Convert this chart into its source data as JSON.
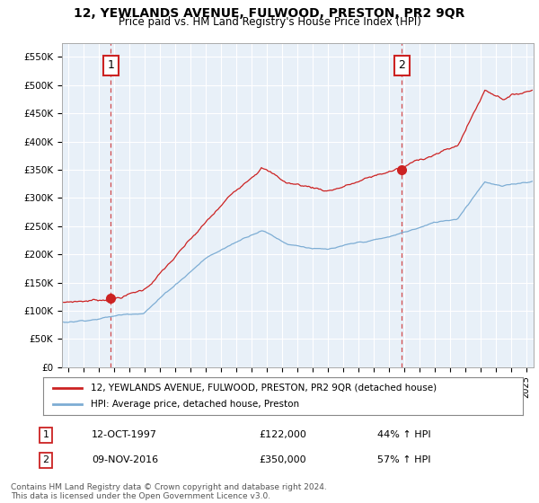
{
  "title": "12, YEWLANDS AVENUE, FULWOOD, PRESTON, PR2 9QR",
  "subtitle": "Price paid vs. HM Land Registry's House Price Index (HPI)",
  "ylim": [
    0,
    575000
  ],
  "xlim_start": 1994.6,
  "xlim_end": 2025.5,
  "yticks": [
    0,
    50000,
    100000,
    150000,
    200000,
    250000,
    300000,
    350000,
    400000,
    450000,
    500000,
    550000
  ],
  "ytick_labels": [
    "£0",
    "£50K",
    "£100K",
    "£150K",
    "£200K",
    "£250K",
    "£300K",
    "£350K",
    "£400K",
    "£450K",
    "£500K",
    "£550K"
  ],
  "xticks": [
    1995,
    1996,
    1997,
    1998,
    1999,
    2000,
    2001,
    2002,
    2003,
    2004,
    2005,
    2006,
    2007,
    2008,
    2009,
    2010,
    2011,
    2012,
    2013,
    2014,
    2015,
    2016,
    2017,
    2018,
    2019,
    2020,
    2021,
    2022,
    2023,
    2024,
    2025
  ],
  "sale1_x": 1997.79,
  "sale1_y": 122000,
  "sale1_label": "1",
  "sale1_date": "12-OCT-1997",
  "sale1_price": "£122,000",
  "sale1_hpi": "44% ↑ HPI",
  "sale2_x": 2016.86,
  "sale2_y": 350000,
  "sale2_label": "2",
  "sale2_date": "09-NOV-2016",
  "sale2_price": "£350,000",
  "sale2_hpi": "57% ↑ HPI",
  "red_color": "#cc2222",
  "blue_color": "#7dadd4",
  "plot_bg": "#e8f0f8",
  "legend_label_red": "12, YEWLANDS AVENUE, FULWOOD, PRESTON, PR2 9QR (detached house)",
  "legend_label_blue": "HPI: Average price, detached house, Preston",
  "footer": "Contains HM Land Registry data © Crown copyright and database right 2024.\nThis data is licensed under the Open Government Licence v3.0.",
  "background_color": "#ffffff",
  "grid_color": "#ffffff"
}
